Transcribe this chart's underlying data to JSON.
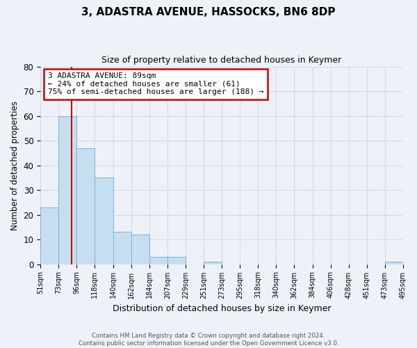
{
  "title": "3, ADASTRA AVENUE, HASSOCKS, BN6 8DP",
  "subtitle": "Size of property relative to detached houses in Keymer",
  "xlabel": "Distribution of detached houses by size in Keymer",
  "ylabel": "Number of detached properties",
  "bar_color": "#c6dff0",
  "bar_edge_color": "#7ab0d4",
  "grid_color": "#d0d8ea",
  "annotation_box_color": "#ffffff",
  "annotation_box_edge_color": "#cc0000",
  "vline_color": "#cc0000",
  "tick_labels": [
    "51sqm",
    "73sqm",
    "96sqm",
    "118sqm",
    "140sqm",
    "162sqm",
    "184sqm",
    "207sqm",
    "229sqm",
    "251sqm",
    "273sqm",
    "295sqm",
    "318sqm",
    "340sqm",
    "362sqm",
    "384sqm",
    "406sqm",
    "428sqm",
    "451sqm",
    "473sqm",
    "495sqm"
  ],
  "bar_heights": [
    23,
    60,
    47,
    35,
    13,
    12,
    3,
    3,
    0,
    1,
    0,
    0,
    0,
    0,
    0,
    0,
    0,
    0,
    0,
    1
  ],
  "ylim": [
    0,
    80
  ],
  "yticks": [
    0,
    10,
    20,
    30,
    40,
    50,
    60,
    70,
    80
  ],
  "vline_x": 1.73,
  "annotation_text": "3 ADASTRA AVENUE: 89sqm\n← 24% of detached houses are smaller (61)\n75% of semi-detached houses are larger (188) →",
  "footer_line1": "Contains HM Land Registry data © Crown copyright and database right 2024.",
  "footer_line2": "Contains public sector information licensed under the Open Government Licence v3.0.",
  "background_color": "#eef2f8"
}
